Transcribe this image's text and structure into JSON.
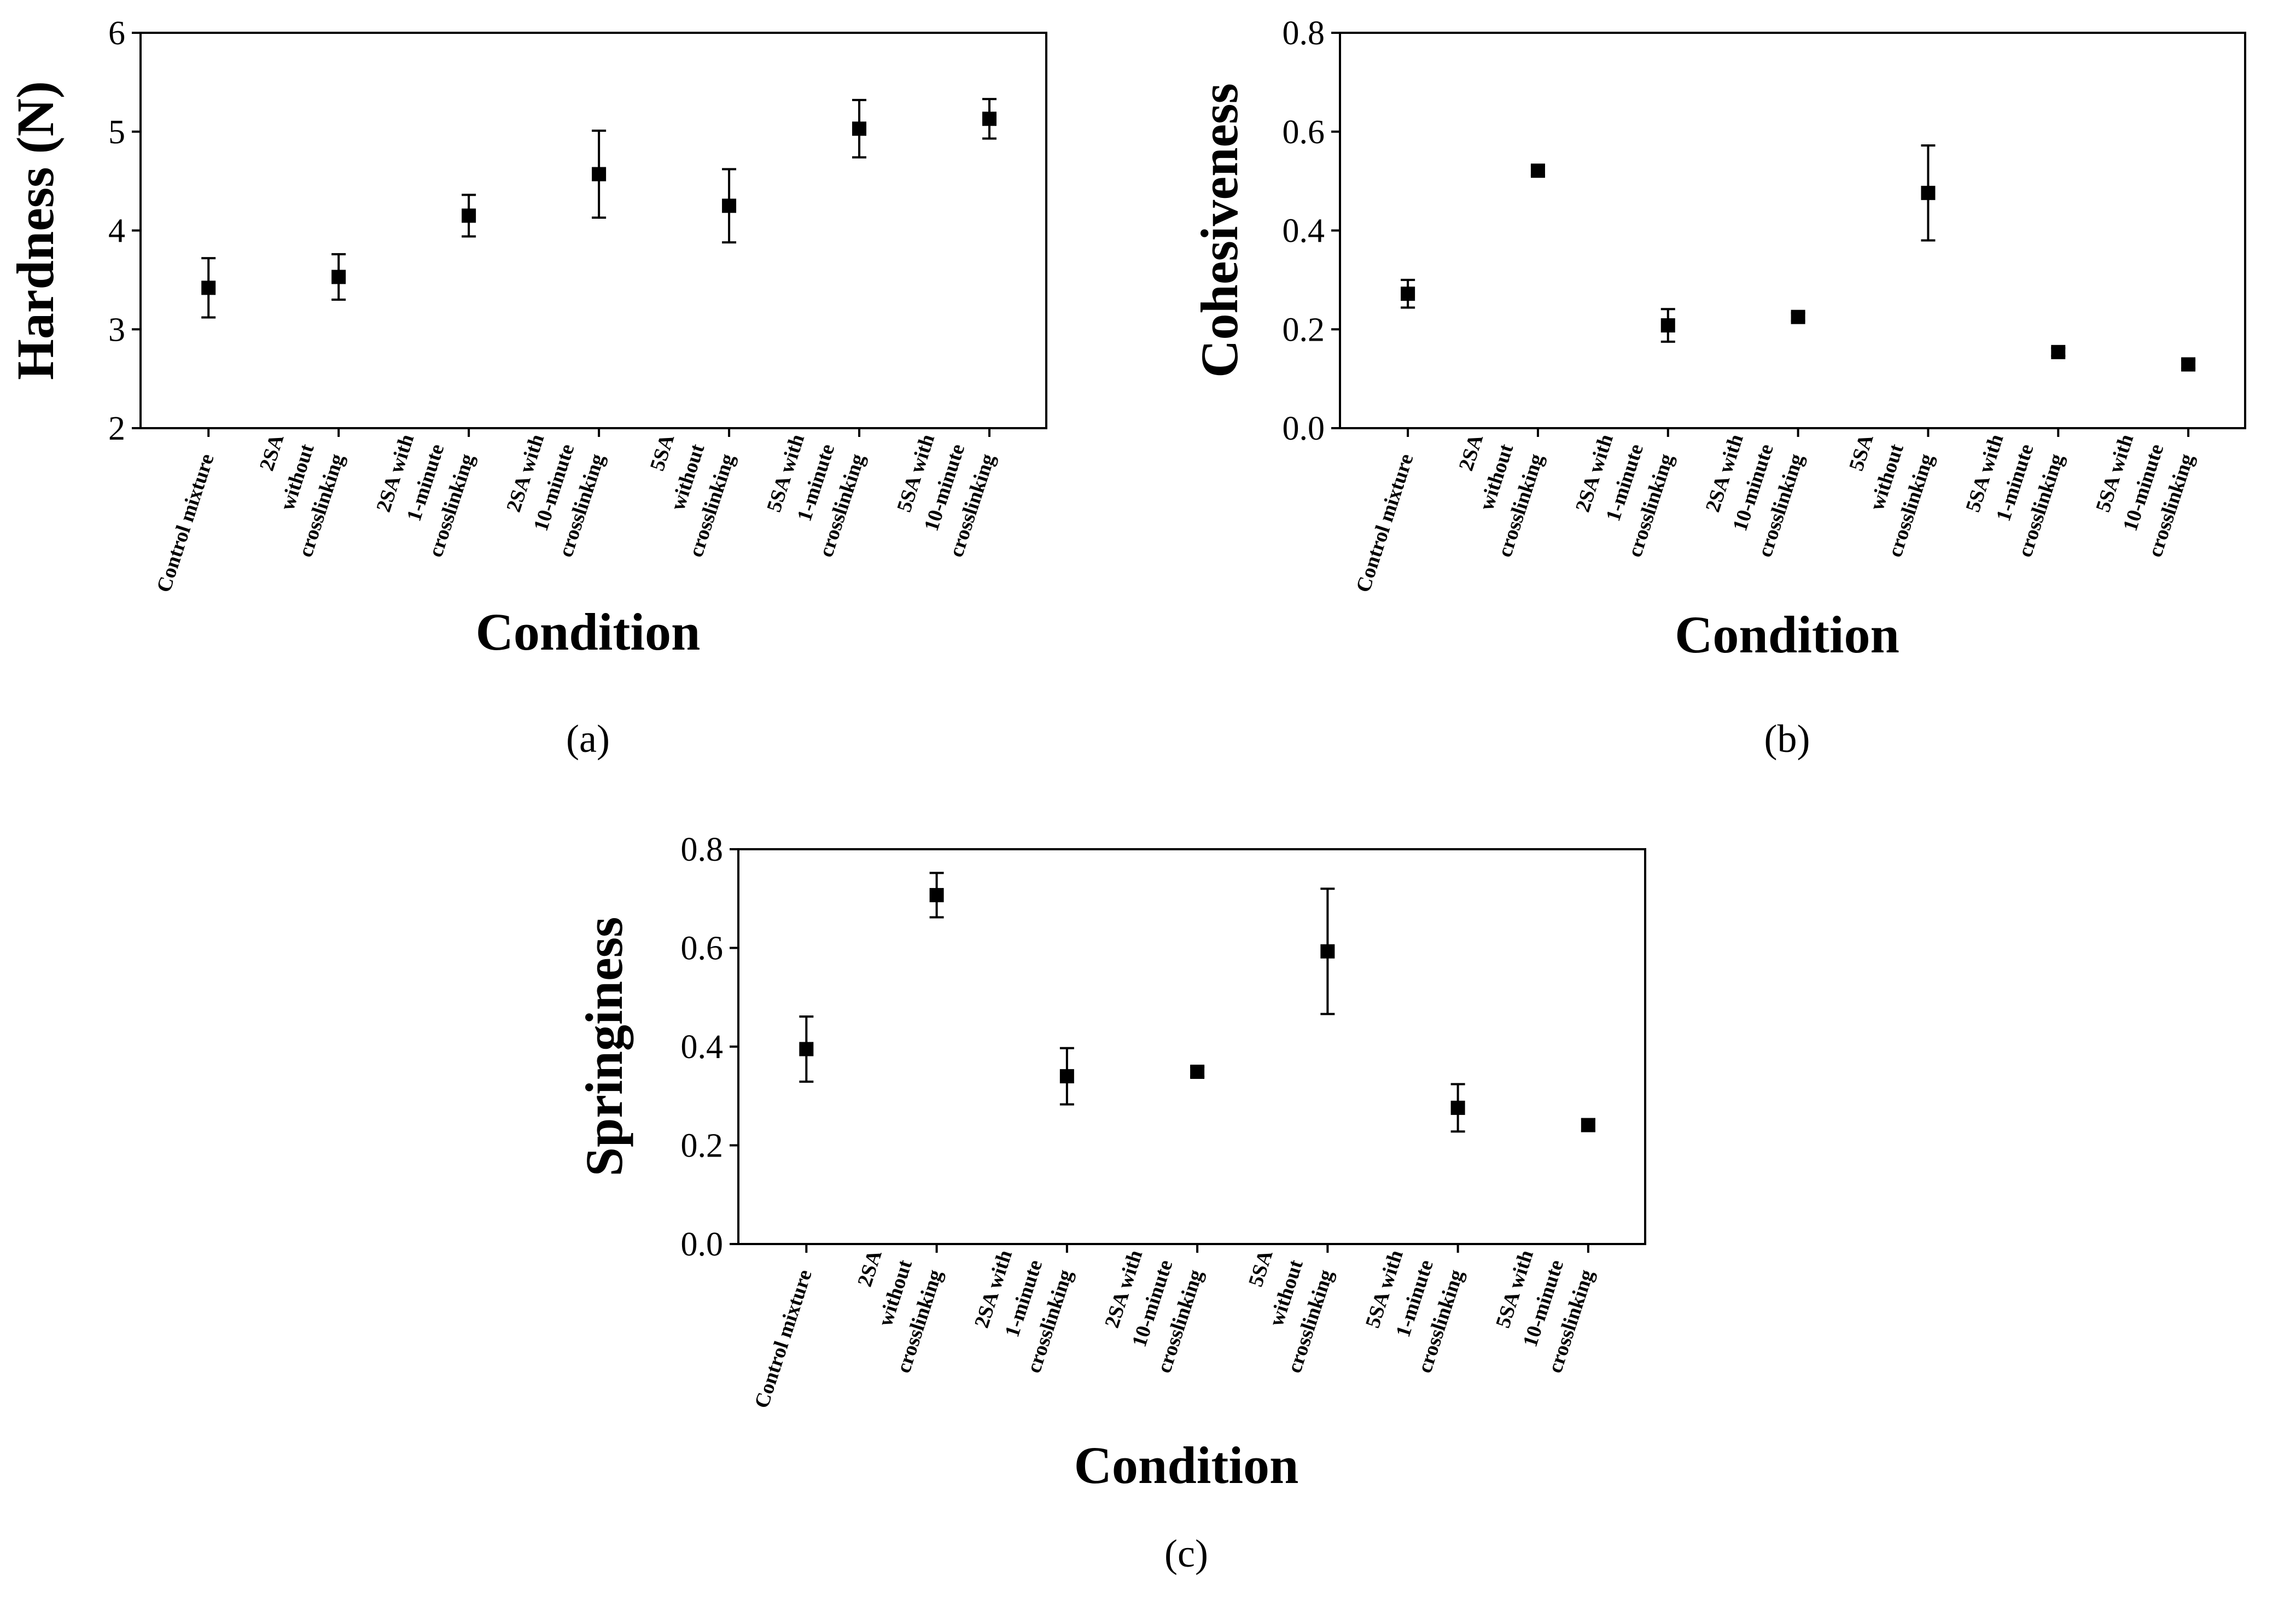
{
  "chart_data": [
    {
      "panel": "(a)",
      "type": "scatter",
      "ylabel": "Hardness (N)",
      "xlabel": "Condition",
      "ylim": [
        2,
        6
      ],
      "yticks": [
        "2",
        "3",
        "4",
        "5",
        "6"
      ],
      "categories": [
        [
          "Control mixture"
        ],
        [
          "2SA",
          "without",
          "crosslinking"
        ],
        [
          "2SA  with",
          "1-minute",
          "crosslinking"
        ],
        [
          "2SA with",
          "10-minute",
          "crosslinking"
        ],
        [
          "5SA",
          "without",
          "crosslinking"
        ],
        [
          "5SA with",
          "1-minute",
          "crosslinking"
        ],
        [
          "5SA with",
          "10-minute",
          "crosslinking"
        ]
      ],
      "values": [
        3.42,
        3.53,
        4.15,
        4.57,
        4.25,
        5.03,
        5.13
      ],
      "errors": [
        0.3,
        0.23,
        0.21,
        0.44,
        0.37,
        0.29,
        0.2
      ]
    },
    {
      "panel": "(b)",
      "type": "scatter",
      "ylabel": "Cohesiveness",
      "xlabel": "Condition",
      "ylim": [
        0.0,
        0.8
      ],
      "yticks": [
        "0.0",
        "0.2",
        "0.4",
        "0.6",
        "0.8"
      ],
      "categories": [
        [
          "Control mixture"
        ],
        [
          "2SA",
          "without",
          "crosslinking"
        ],
        [
          "2SA  with",
          "1-minute",
          "crosslinking"
        ],
        [
          "2SA with",
          "10-minute",
          "crosslinking"
        ],
        [
          "5SA",
          "without",
          "crosslinking"
        ],
        [
          "5SA with",
          "1-minute",
          "crosslinking"
        ],
        [
          "5SA with",
          "10-minute",
          "crosslinking"
        ]
      ],
      "values": [
        0.272,
        0.521,
        0.208,
        0.225,
        0.476,
        0.154,
        0.129
      ],
      "errors": [
        0.028,
        0.01,
        0.033,
        0.008,
        0.096,
        0.008,
        0.008
      ]
    },
    {
      "panel": "(c)",
      "type": "scatter",
      "ylabel": "Springiness",
      "xlabel": "Condition",
      "ylim": [
        0.0,
        0.8
      ],
      "yticks": [
        "0.0",
        "0.2",
        "0.4",
        "0.6",
        "0.8"
      ],
      "categories": [
        [
          "Control mixture"
        ],
        [
          "2SA",
          "without",
          "crosslinking"
        ],
        [
          "2SA  with",
          "1-minute",
          "crosslinking"
        ],
        [
          "2SA with",
          "10-minute",
          "crosslinking"
        ],
        [
          "5SA",
          "without",
          "crosslinking"
        ],
        [
          "5SA with",
          "1-minute",
          "crosslinking"
        ],
        [
          "5SA with",
          "10-minute",
          "crosslinking"
        ]
      ],
      "values": [
        0.395,
        0.707,
        0.34,
        0.349,
        0.593,
        0.276,
        0.241
      ],
      "errors": [
        0.066,
        0.045,
        0.057,
        0.01,
        0.127,
        0.048,
        0.012
      ]
    }
  ]
}
